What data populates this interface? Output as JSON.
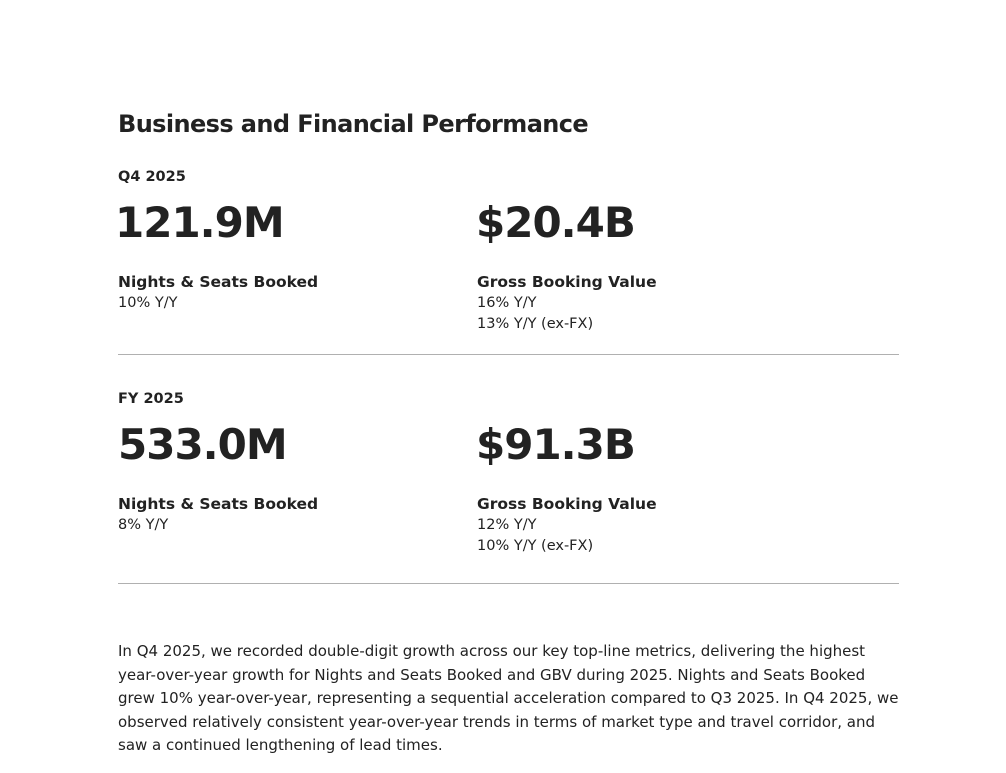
{
  "title": "Business and Financial Performance",
  "sections": [
    {
      "period": "Q4 2025",
      "metrics": [
        {
          "value": "121.9M",
          "label": "Nights & Seats Booked",
          "stats": [
            "10% Y/Y"
          ]
        },
        {
          "value": "$20.4B",
          "label": "Gross Booking Value",
          "stats": [
            "16% Y/Y",
            "13% Y/Y (ex-FX)"
          ]
        }
      ]
    },
    {
      "period": "FY 2025",
      "metrics": [
        {
          "value": "533.0M",
          "label": "Nights & Seats Booked",
          "stats": [
            "8% Y/Y"
          ]
        },
        {
          "value": "$91.3B",
          "label": "Gross Booking Value",
          "stats": [
            "12% Y/Y",
            "10% Y/Y (ex-FX)"
          ]
        }
      ]
    }
  ],
  "commentary": "In Q4 2025, we recorded double-digit growth across our key top-line metrics, delivering the highest year-over-year growth for Nights and Seats Booked and GBV during 2025. Nights and Seats Booked grew 10% year-over-year, representing a sequential acceleration compared to Q3 2025. In Q4 2025, we observed relatively consistent year-over-year trends in terms of market type and travel corridor, and saw a continued lengthening of lead times."
}
